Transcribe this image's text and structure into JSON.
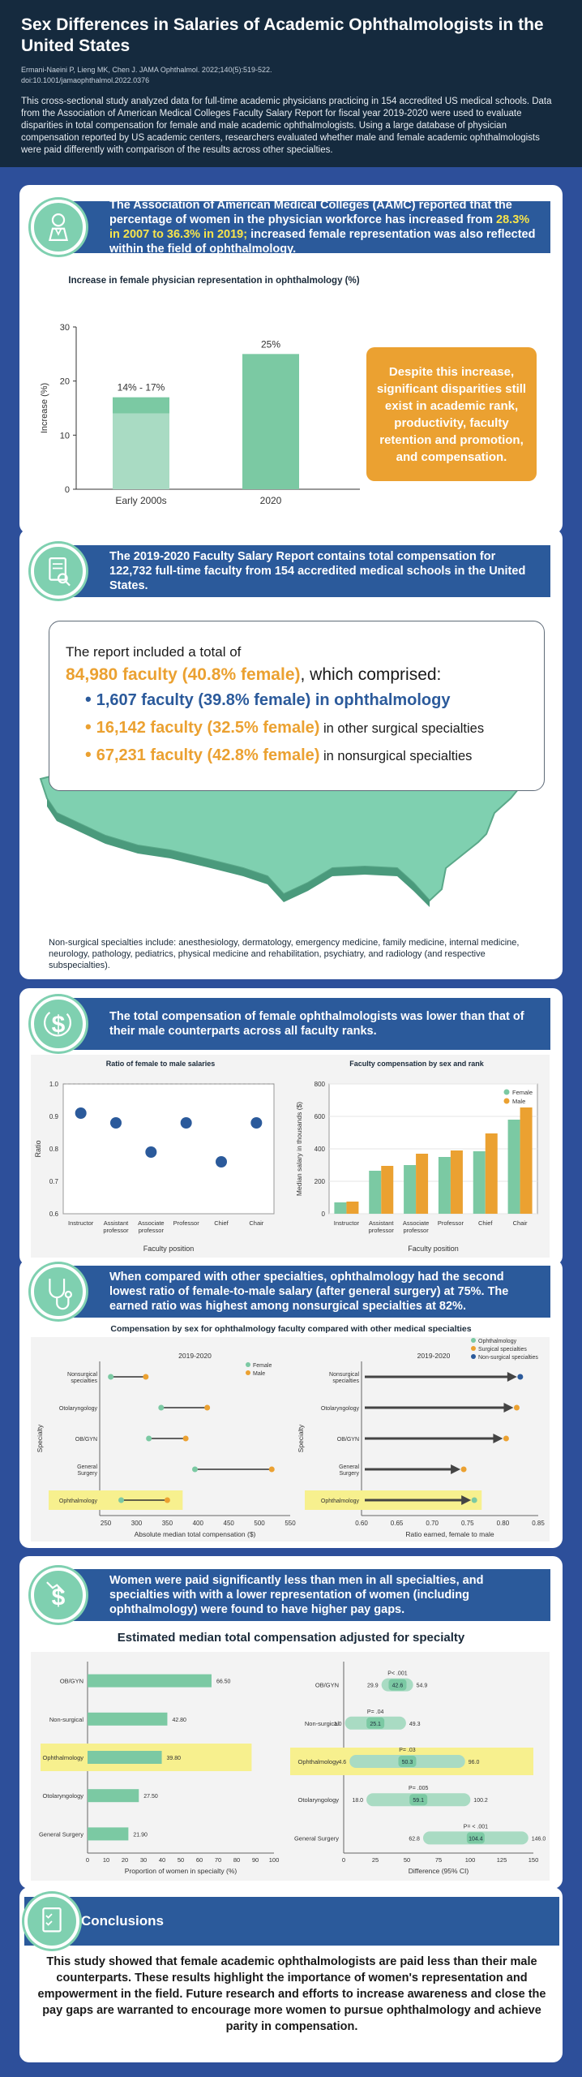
{
  "header": {
    "title": "Sex Differences in Salaries of Academic Ophthalmologists in the United States",
    "citation_line1": "Ermani-Naeini P, Lieng MK, Chen J. JAMA Ophthalmol. 2022;140(5):519-522.",
    "citation_line2": "doi:10.1001/jamaophthalmol.2022.0376",
    "intro": "This cross-sectional study analyzed data for full-time academic physicians practicing in 154 accredited US medical schools. Data from the Association of American Medical Colleges Faculty Salary Report for fiscal year 2019-2020 were used to evaluate disparities in total compensation for female and male academic ophthalmologists. Using a large database of physician compensation reported by US academic centers, researchers evaluated whether male and female academic ophthalmologists were paid differently with comparison of the results across other specialties."
  },
  "section1": {
    "banner_a": "The Association of American Medical Colleges (AAMC) reported that the percentage of women in the physician workforce has increased from ",
    "banner_hl": "28.3% in 2007 to 36.3% in 2019;",
    "banner_b": " increased female representation was also reflected within the field of ophthalmology.",
    "callout": "Despite this increase, significant disparities still exist in academic rank, productivity, faculty retention and promotion, and compensation."
  },
  "section2": {
    "banner": "The 2019-2020 Faculty Salary Report contains total compensation for 122,732 full-time faculty from 154 accredited medical schools in the United States.",
    "line1": "The report included a total of",
    "total": "84,980 faculty (40.8% female)",
    "total_suffix": ", which comprised:",
    "items": [
      {
        "big": "1,607 faculty (39.8% female) in ophthalmology",
        "rest": ""
      },
      {
        "big": "16,142 faculty (32.5% female)",
        "rest": " in other surgical specialties"
      },
      {
        "big": "67,231 faculty (42.8% female)",
        "rest": " in nonsurgical specialties"
      }
    ],
    "note": "Non-surgical specialties include: anesthesiology, dermatology, emergency medicine, family medicine, internal medicine, neurology, pathology, pediatrics, physical medicine and rehabilitation, psychiatry, and radiology (and respective subspecialties)."
  },
  "section3": {
    "banner": "The total compensation of female ophthalmologists was lower than that of their male counterparts across all faculty ranks."
  },
  "section4": {
    "banner": "When compared with other specialties, ophthalmology had the second lowest ratio of female-to-male salary (after general surgery) at 75%. The earned ratio was highest among nonsurgical specialties at 82%."
  },
  "section5": {
    "banner": "Women were paid significantly less than men in all specialties, and specialties with with a lower representation of women (including ophthalmology) were found to have higher pay gaps."
  },
  "conclusions": {
    "title": "Conclusions",
    "text": "This study showed that female academic ophthalmologists are paid less than their male counterparts. These results highlight the importance of women's representation and empowerment in the field. Future research and efforts to increase awareness and close the pay gaps are warranted to encourage more women to pursue ophthalmology and achieve parity in compensation."
  },
  "colors": {
    "green": "#7bc9a3",
    "green_light": "#a9dbc3",
    "orange": "#eba131",
    "blue": "#2b5a9b",
    "highlight": "#f7f08e"
  },
  "chart_data": [
    {
      "type": "bar",
      "title": "Increase in female physician representation in ophthalmology (%)",
      "categories": [
        "Early 2000s",
        "2020"
      ],
      "values": [
        17,
        25
      ],
      "range_low": [
        14,
        null
      ],
      "data_labels": [
        "14% - 17%",
        "25%"
      ],
      "ylabel": "Increase (%)",
      "ylim": [
        0,
        30
      ],
      "yticks": [
        0,
        10,
        20,
        30
      ]
    },
    {
      "type": "scatter",
      "title": "Ratio of female to male salaries",
      "categories": [
        "Instructor",
        "Assistant professor",
        "Associate professor",
        "Professor",
        "Chief",
        "Chair"
      ],
      "values": [
        0.91,
        0.88,
        0.79,
        0.88,
        0.76,
        0.88
      ],
      "xlabel": "Faculty position",
      "ylabel": "Ratio",
      "ylim": [
        0.6,
        1.0
      ],
      "yticks": [
        "0.6",
        "0.7",
        "0.8",
        "0.9",
        "1.0"
      ],
      "reference_line": 1.0
    },
    {
      "type": "bar",
      "title": "Faculty compensation by sex and rank",
      "categories": [
        "Instructor",
        "Assistant professor",
        "Associate professor",
        "Professor",
        "Chief",
        "Chair"
      ],
      "series": [
        {
          "name": "Female",
          "values": [
            70,
            265,
            300,
            350,
            385,
            580
          ]
        },
        {
          "name": "Male",
          "values": [
            75,
            295,
            370,
            390,
            495,
            655
          ]
        }
      ],
      "xlabel": "Faculty position",
      "ylabel": "Median salary in thousands ($)",
      "ylim": [
        0,
        800
      ],
      "yticks": [
        0,
        200,
        400,
        600,
        800
      ],
      "legend": "top-right"
    },
    {
      "type": "dumbbell",
      "title": "Compensation by sex for ophthalmology faculty compared with other medical specialties",
      "subtitle": "2019-2020",
      "categories": [
        "Nonsurgical specialties",
        "Otolaryngology",
        "OB/GYN",
        "General Surgery",
        "Ophthalmology"
      ],
      "series": [
        {
          "name": "Female",
          "values": [
            258,
            340,
            320,
            395,
            275
          ]
        },
        {
          "name": "Male",
          "values": [
            315,
            415,
            380,
            520,
            350
          ]
        }
      ],
      "xlabel": "Absolute median total compensation ($)",
      "ylabel": "Specialty",
      "xlim": [
        240,
        550
      ],
      "xticks": [
        250,
        300,
        350,
        400,
        450,
        500,
        550
      ],
      "highlight": "Ophthalmology",
      "legend": "top-right"
    },
    {
      "type": "arrow",
      "subtitle": "2019-2020",
      "categories": [
        "Nonsurgical specialties",
        "Otolaryngology",
        "OB/GYN",
        "General Surgery",
        "Ophthalmology"
      ],
      "values": [
        0.82,
        0.815,
        0.8,
        0.74,
        0.755
      ],
      "groups": [
        "Non-surgical specialties",
        "Surgical specialties",
        "Surgical specialties",
        "Surgical specialties",
        "Ophthalmology"
      ],
      "legend_entries": [
        "Ophthalmology",
        "Surgical specialties",
        "Non-surgical specialties"
      ],
      "xlabel": "Ratio earned, female to male",
      "ylabel": "Specialty",
      "xlim": [
        0.6,
        0.85
      ],
      "xticks": [
        "0.60",
        "0.65",
        "0.70",
        "0.75",
        "0.80",
        "0.85"
      ],
      "highlight": "Ophthalmology"
    },
    {
      "type": "bar",
      "title": "Estimated median total compensation adjusted for specialty",
      "orientation": "horizontal",
      "categories": [
        "OB/GYN",
        "Non-surgical",
        "Ophthalmology",
        "Otolaryngology",
        "General Surgery"
      ],
      "values": [
        66.5,
        42.8,
        39.8,
        27.5,
        21.9
      ],
      "data_labels": [
        "66.50",
        "42.80",
        "39.80",
        "27.50",
        "21.90"
      ],
      "xlabel": "Proportion of women in specialty (%)",
      "xlim": [
        0,
        100
      ],
      "xticks": [
        0,
        10,
        20,
        30,
        40,
        50,
        60,
        70,
        80,
        90,
        100
      ],
      "highlight": "Ophthalmology"
    },
    {
      "type": "interval",
      "categories": [
        "OB/GYN",
        "Non-surgical",
        "Ophthalmology",
        "Otolaryngology",
        "General Surgery"
      ],
      "estimate": [
        42.6,
        25.1,
        50.3,
        59.1,
        104.4
      ],
      "low": [
        29.9,
        1.0,
        4.6,
        18.0,
        62.8
      ],
      "high": [
        54.9,
        49.3,
        96.0,
        100.2,
        146.0
      ],
      "estimate_labels": [
        "42.6",
        "25.1",
        "50.3",
        "59.1",
        "104.4"
      ],
      "low_labels": [
        "29.9",
        "1.0",
        "4.6",
        "18.0",
        "62.8"
      ],
      "high_labels": [
        "54.9",
        "49.3",
        "96.0",
        "100.2",
        "146.0"
      ],
      "p_values": [
        "P< .001",
        "P= .04",
        "P= .03",
        "P= .005",
        "P= < .001"
      ],
      "xlabel": "Difference (95% CI)",
      "xlim": [
        0,
        150
      ],
      "xticks": [
        0,
        25,
        50,
        75,
        100,
        125,
        150
      ],
      "highlight": "Ophthalmology"
    }
  ]
}
